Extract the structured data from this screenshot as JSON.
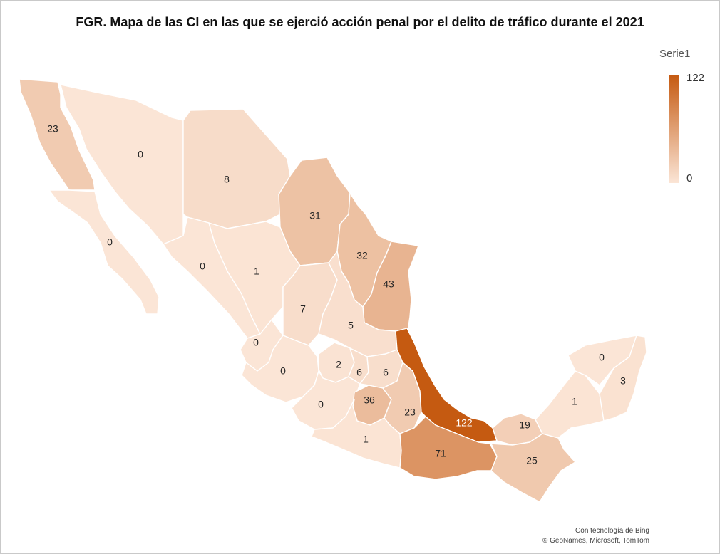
{
  "title": "FGR. Mapa de las CI en las que se ejerció acción penal por el delito de tráfico durante el 2021",
  "legend": {
    "title": "Serie1",
    "max": "122",
    "min": "0"
  },
  "colors": {
    "high": "#c55a11",
    "low": "#fbe5d6",
    "border": "#ffffff"
  },
  "credit": {
    "line1": "Con tecnología de Bing",
    "line2": "© GeoNames, Microsoft, TomTom"
  },
  "states": [
    {
      "id": "baja-california",
      "value": 23
    },
    {
      "id": "baja-california-sur",
      "value": 0
    },
    {
      "id": "sonora",
      "value": 0
    },
    {
      "id": "chihuahua",
      "value": 8
    },
    {
      "id": "coahuila",
      "value": 31
    },
    {
      "id": "nuevo-leon",
      "value": 32
    },
    {
      "id": "tamaulipas",
      "value": 43
    },
    {
      "id": "sinaloa",
      "value": 0
    },
    {
      "id": "durango",
      "value": 1
    },
    {
      "id": "zacatecas",
      "value": 7
    },
    {
      "id": "san-luis-potosi",
      "value": 5
    },
    {
      "id": "nayarit",
      "value": 0
    },
    {
      "id": "jalisco",
      "value": 0
    },
    {
      "id": "guanajuato",
      "value": 2
    },
    {
      "id": "queretaro",
      "value": 6
    },
    {
      "id": "hidalgo",
      "value": 6
    },
    {
      "id": "michoacan",
      "value": 0
    },
    {
      "id": "estado-de-mexico",
      "value": 36
    },
    {
      "id": "puebla",
      "value": 23
    },
    {
      "id": "veracruz",
      "value": 122
    },
    {
      "id": "guerrero",
      "value": 1
    },
    {
      "id": "oaxaca",
      "value": 71
    },
    {
      "id": "tabasco",
      "value": 19
    },
    {
      "id": "chiapas",
      "value": 25
    },
    {
      "id": "campeche",
      "value": 1
    },
    {
      "id": "yucatan",
      "value": 0
    },
    {
      "id": "quintana-roo",
      "value": 3
    }
  ]
}
